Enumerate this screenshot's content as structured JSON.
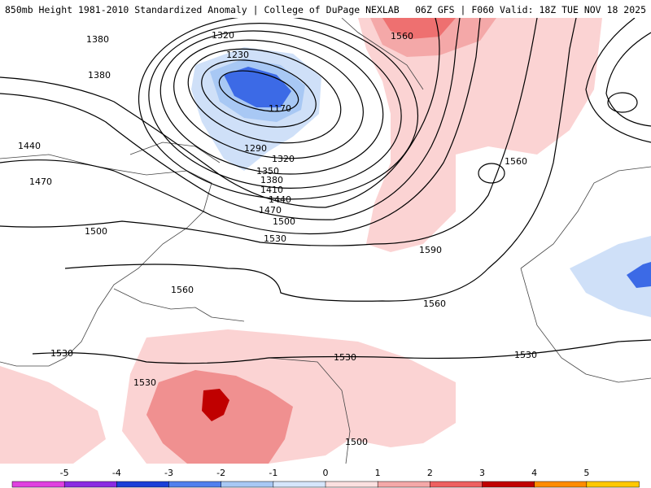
{
  "header": {
    "left_title": "850mb Height 1981-2010 Standardized Anomaly | College of DuPage NEXLAB",
    "right_title": "06Z GFS | F060 Valid: 18Z TUE NOV 18 2025"
  },
  "contour_labels": {
    "c1380a": "1380",
    "c1380b": "1380",
    "c1320": "1320",
    "c1230": "1230",
    "c1170": "1170",
    "c1560a": "1560",
    "c1440": "1440",
    "c1470": "1470",
    "c1290": "1290",
    "c1320b": "1320",
    "c1350": "1350",
    "c1380c": "1380",
    "c1410": "1410",
    "c1440b": "1440",
    "c1470b": "1470",
    "c1500": "1500",
    "c1500b": "1500",
    "c1530": "1530",
    "c1560b": "1560",
    "c1590": "1590",
    "c1560c": "1560",
    "c1560d": "1560",
    "c1530b": "1530",
    "c1530c": "1530",
    "c1530d": "1530",
    "c1530e": "1530",
    "c1500c": "1500"
  },
  "colorbar": {
    "ticks": [
      "-5",
      "-4",
      "-3",
      "-2",
      "-1",
      "0",
      "1",
      "2",
      "3",
      "4",
      "5"
    ],
    "colors": [
      "#e040e0",
      "#8a2be2",
      "#1a3fd8",
      "#5080ee",
      "#a8c8f4",
      "#d6e6fb",
      "#fbe0e0",
      "#f4a8a8",
      "#ee6060",
      "#c00000",
      "#ff8c00",
      "#ffc800"
    ]
  }
}
